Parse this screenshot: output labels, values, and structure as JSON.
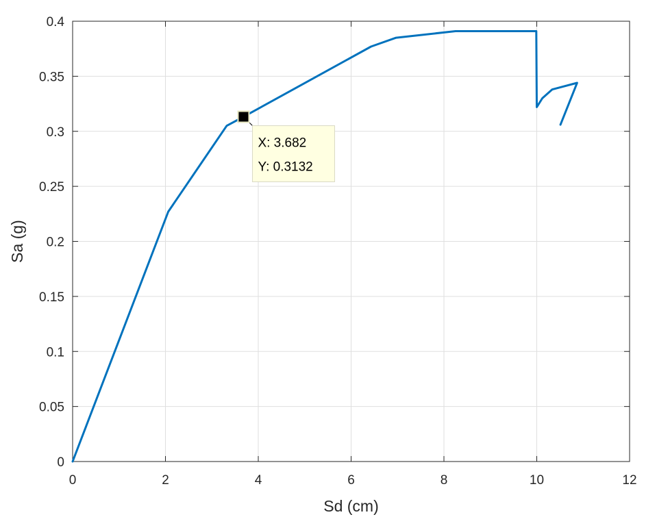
{
  "chart_data": {
    "type": "line",
    "xlabel": "Sd (cm)",
    "ylabel": "Sa (g)",
    "xlim": [
      0,
      12
    ],
    "ylim": [
      0,
      0.4
    ],
    "xticks": [
      0,
      2,
      4,
      6,
      8,
      10,
      12
    ],
    "xtick_labels": [
      "0",
      "2",
      "4",
      "6",
      "8",
      "10",
      "12"
    ],
    "yticks": [
      0,
      0.05,
      0.1,
      0.15,
      0.2,
      0.25,
      0.3,
      0.35,
      0.4
    ],
    "ytick_labels": [
      "0",
      "0.05",
      "0.1",
      "0.15",
      "0.2",
      "0.25",
      "0.3",
      "0.35",
      "0.4"
    ],
    "grid": true,
    "series": [
      {
        "color": "#0072BD",
        "x": [
          0,
          2.06,
          3.32,
          3.682,
          6.43,
          6.97,
          8.25,
          9.99,
          10.0,
          10.12,
          10.33,
          10.87,
          10.51
        ],
        "y": [
          0,
          0.227,
          0.305,
          0.3132,
          0.377,
          0.385,
          0.391,
          0.391,
          0.322,
          0.33,
          0.338,
          0.344,
          0.306
        ]
      }
    ],
    "datatip": {
      "x": 3.682,
      "y": 0.3132,
      "x_text": "X: 3.682",
      "y_text": "Y: 0.3132"
    }
  }
}
